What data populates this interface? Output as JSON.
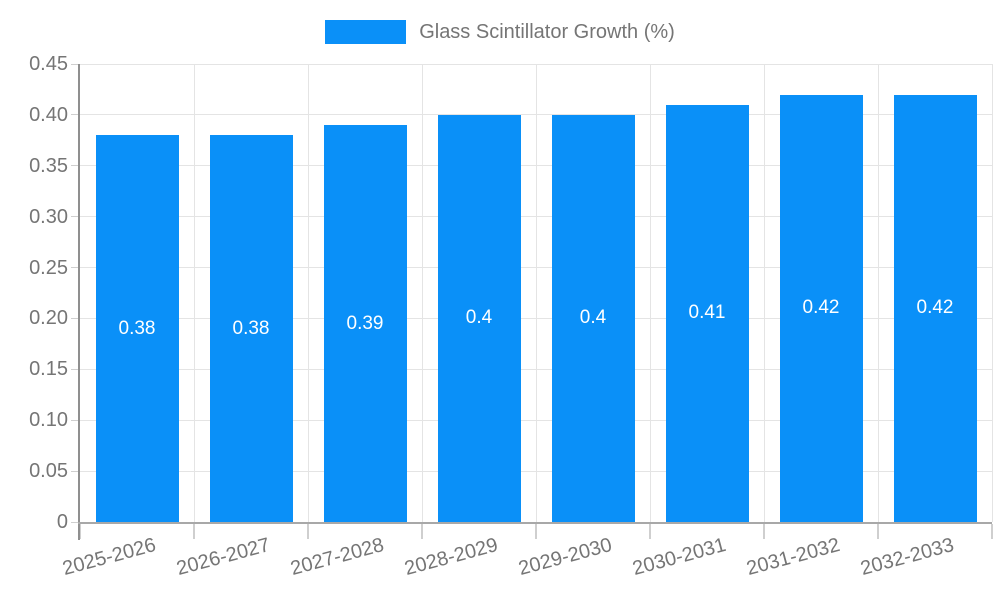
{
  "chart_data": {
    "type": "bar",
    "title": "",
    "legend": "Glass Scintillator Growth (%)",
    "legend_position": "top-center",
    "categories": [
      "2025-2026",
      "2026-2027",
      "2027-2028",
      "2028-2029",
      "2029-2030",
      "2030-2031",
      "2031-2032",
      "2032-2033"
    ],
    "values": [
      0.38,
      0.38,
      0.39,
      0.4,
      0.4,
      0.41,
      0.42,
      0.42
    ],
    "value_labels": [
      "0.38",
      "0.38",
      "0.39",
      "0.4",
      "0.4",
      "0.41",
      "0.42",
      "0.42"
    ],
    "xlabel": "",
    "ylabel": "",
    "ylim": [
      0,
      0.45
    ],
    "ytick_step": 0.05,
    "ytick_labels": [
      "0",
      "0.05",
      "0.10",
      "0.15",
      "0.20",
      "0.25",
      "0.30",
      "0.35",
      "0.40",
      "0.45"
    ],
    "grid": true,
    "colors": {
      "bar": "#0a90f8",
      "grid_line": "#e4e4e4",
      "y_axis_line": "#8f8f8f",
      "x_axis_line": "#a8a8a8",
      "tick": "#cfcfcf",
      "axis_text": "#757575",
      "legend_text": "#757575",
      "value_label_text": "#ffffff",
      "background": "#ffffff"
    }
  }
}
